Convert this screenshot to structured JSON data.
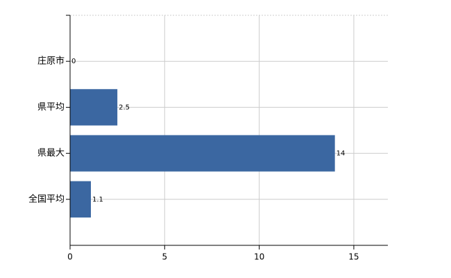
{
  "chart_data": {
    "type": "hbar",
    "categories": [
      "庄原市",
      "県平均",
      "県最大",
      "全国平均"
    ],
    "values": [
      0,
      2.5,
      14,
      1.1
    ],
    "color": "#3b67a1",
    "xlim": [
      0,
      16.8
    ],
    "xticks": [
      0,
      5,
      10,
      15
    ],
    "grid": true
  }
}
